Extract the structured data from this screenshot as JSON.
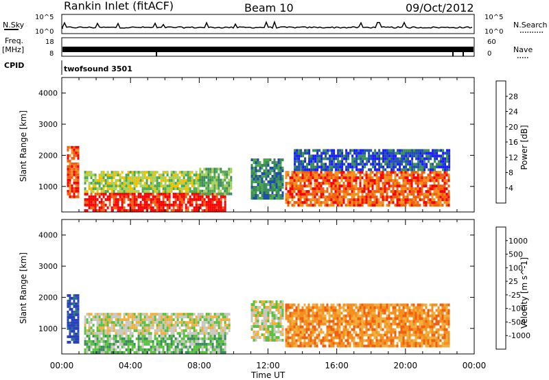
{
  "header": {
    "station": "Rankin Inlet (fitACF)",
    "beam": "Beam 10",
    "date": "09/Oct/2012"
  },
  "strips": {
    "nsky_label": "N.Sky",
    "nsky_ticks": [
      "10^5",
      "10^0"
    ],
    "nsearch_label": "N.Search",
    "nsearch_ticks": [
      "10^5",
      "10^0"
    ],
    "freq_label": "Freq.",
    "freq_unit": "[MHz]",
    "freq_ticks": [
      "18",
      "8"
    ],
    "nave_label": "Nave",
    "nave_ticks": [
      "60",
      "0"
    ],
    "cpid_label": "CPID",
    "cpid_value": "twofsound 3501"
  },
  "colors": {
    "power": [
      "#1a1aff",
      "#1f4fa8",
      "#3b8c5a",
      "#4fa84f",
      "#a8d05a",
      "#f0c000",
      "#f39020",
      "#f06010",
      "#ff0000"
    ],
    "velocity": [
      "#2a3fbf",
      "#2e6f8e",
      "#3b8c5a",
      "#5cc040",
      "#c8c8c0",
      "#f0b040",
      "#f39020",
      "#f06010",
      "#ff0000"
    ]
  },
  "chart_data": [
    {
      "type": "heatmap",
      "name": "power",
      "ylabel": "Slant Range [km]",
      "ylim": [
        180,
        4500
      ],
      "yticks": [
        "4000",
        "3000",
        "2000",
        "1000"
      ],
      "colorbar_label": "Power [dB]",
      "colorbar_ticks": [
        "28",
        "24",
        "20",
        "16",
        "12",
        "8",
        "4"
      ],
      "regions": [
        {
          "x0": 0.3,
          "x1": 1.0,
          "y0": 700,
          "y1": 2300,
          "level": 7
        },
        {
          "x0": 1.3,
          "x1": 9.5,
          "y0": 200,
          "y1": 800,
          "level": 8
        },
        {
          "x0": 1.3,
          "x1": 8.0,
          "y0": 800,
          "y1": 1500,
          "level": 4
        },
        {
          "x0": 8.0,
          "x1": 9.8,
          "y0": 800,
          "y1": 1600,
          "level": 3
        },
        {
          "x0": 11.0,
          "x1": 12.8,
          "y0": 600,
          "y1": 1900,
          "level": 2
        },
        {
          "x0": 13.0,
          "x1": 22.5,
          "y0": 400,
          "y1": 1500,
          "level": 7
        },
        {
          "x0": 13.5,
          "x1": 22.5,
          "y0": 1500,
          "y1": 2200,
          "level": 1
        }
      ]
    },
    {
      "type": "heatmap",
      "name": "velocity",
      "ylabel": "Slant Range [km]",
      "ylim": [
        180,
        4500
      ],
      "yticks": [
        "4000",
        "3000",
        "2000",
        "1000"
      ],
      "colorbar_label": "Velocity [m s^-1]",
      "colorbar_ticks": [
        "1000",
        "500",
        "100",
        "25",
        "-25",
        "-100",
        "-500",
        "-1000"
      ],
      "regions": [
        {
          "x0": 0.3,
          "x1": 1.0,
          "y0": 600,
          "y1": 2100,
          "level": 0
        },
        {
          "x0": 1.3,
          "x1": 9.5,
          "y0": 200,
          "y1": 800,
          "level": 3
        },
        {
          "x0": 1.3,
          "x1": 9.8,
          "y0": 800,
          "y1": 1500,
          "level": 4
        },
        {
          "x0": 11.0,
          "x1": 12.8,
          "y0": 600,
          "y1": 1900,
          "level": 4
        },
        {
          "x0": 13.0,
          "x1": 22.5,
          "y0": 400,
          "y1": 1800,
          "level": 6
        }
      ]
    }
  ],
  "xaxis": {
    "label": "Time UT",
    "xlim": [
      0,
      24
    ],
    "tick_hours": [
      0,
      4,
      8,
      12,
      16,
      20,
      24
    ],
    "tick_labels": [
      "00:00",
      "04:00",
      "08:00",
      "12:00",
      "16:00",
      "20:00",
      "00:00"
    ]
  }
}
